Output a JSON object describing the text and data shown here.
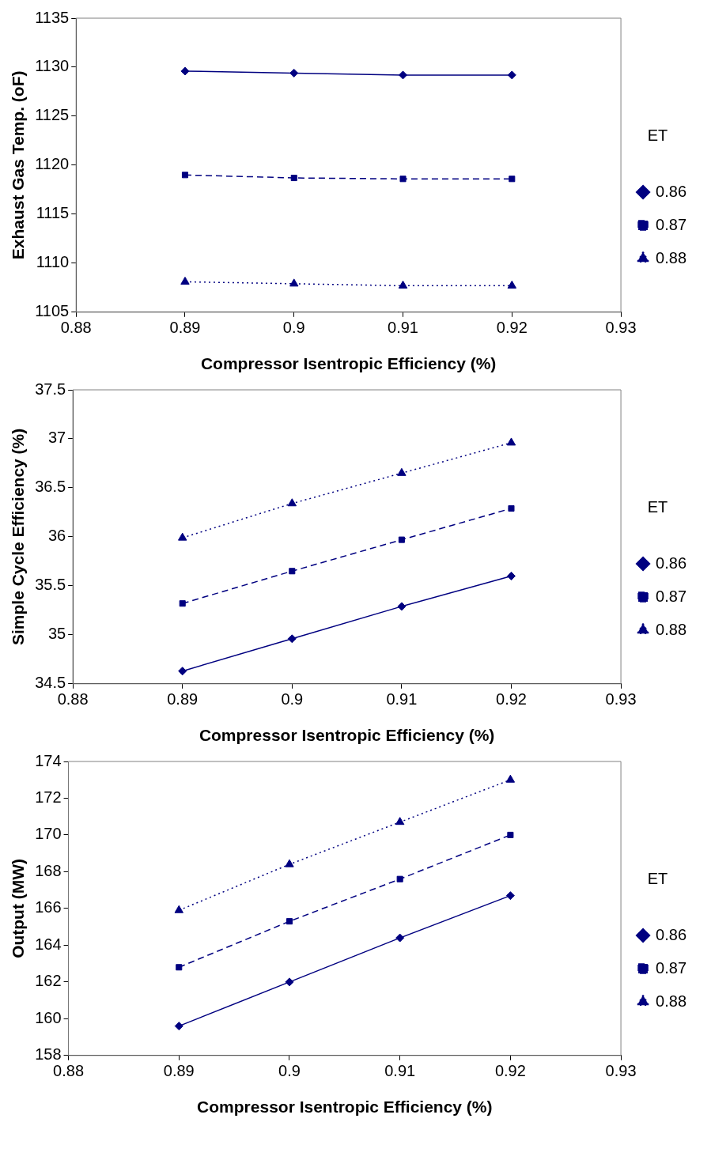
{
  "chart_data": [
    {
      "type": "line",
      "xlabel": "Compressor Isentropic Efficiency (%)",
      "ylabel": "Exhaust Gas Temp. (oF)",
      "legend_title": "ET",
      "legend": "right",
      "grid": false,
      "xlim": [
        0.88,
        0.93
      ],
      "xticks": [
        0.88,
        0.89,
        0.9,
        0.91,
        0.92,
        0.93
      ],
      "ylim": [
        1105,
        1135
      ],
      "yticks": [
        1105,
        1110,
        1115,
        1120,
        1125,
        1130,
        1135
      ],
      "x": [
        0.89,
        0.9,
        0.91,
        0.92
      ],
      "series": [
        {
          "name": "0.86",
          "color": "#000080",
          "marker": "diamond",
          "line_style": "solid",
          "values": [
            1129.6,
            1129.4,
            1129.2,
            1129.2
          ]
        },
        {
          "name": "0.87",
          "color": "#000080",
          "marker": "square",
          "line_style": "dashed",
          "values": [
            1119.0,
            1118.7,
            1118.6,
            1118.6
          ]
        },
        {
          "name": "0.88",
          "color": "#000080",
          "marker": "triangle",
          "line_style": "dotted",
          "values": [
            1108.1,
            1107.9,
            1107.7,
            1107.7
          ]
        }
      ]
    },
    {
      "type": "line",
      "xlabel": "Compressor Isentropic Efficiency (%)",
      "ylabel": "Simple Cycle Efficiency (%)",
      "legend_title": "ET",
      "legend": "right",
      "grid": false,
      "xlim": [
        0.88,
        0.93
      ],
      "xticks": [
        0.88,
        0.89,
        0.9,
        0.91,
        0.92,
        0.93
      ],
      "ylim": [
        34.5,
        37.5
      ],
      "yticks": [
        34.5,
        35,
        35.5,
        36,
        36.5,
        37,
        37.5
      ],
      "x": [
        0.89,
        0.9,
        0.91,
        0.92
      ],
      "series": [
        {
          "name": "0.86",
          "color": "#000080",
          "marker": "diamond",
          "line_style": "solid",
          "values": [
            34.63,
            34.96,
            35.29,
            35.6
          ]
        },
        {
          "name": "0.87",
          "color": "#000080",
          "marker": "square",
          "line_style": "dashed",
          "values": [
            35.32,
            35.65,
            35.97,
            36.29
          ]
        },
        {
          "name": "0.88",
          "color": "#000080",
          "marker": "triangle",
          "line_style": "dotted",
          "values": [
            35.99,
            36.34,
            36.65,
            36.96
          ]
        }
      ]
    },
    {
      "type": "line",
      "xlabel": "Compressor Isentropic Efficiency (%)",
      "ylabel": "Output (MW)",
      "legend_title": "ET",
      "legend": "right",
      "grid": false,
      "xlim": [
        0.88,
        0.93
      ],
      "xticks": [
        0.88,
        0.89,
        0.9,
        0.91,
        0.92,
        0.93
      ],
      "ylim": [
        158,
        174
      ],
      "yticks": [
        158,
        160,
        162,
        164,
        166,
        168,
        170,
        172,
        174
      ],
      "x": [
        0.89,
        0.9,
        0.91,
        0.92
      ],
      "series": [
        {
          "name": "0.86",
          "color": "#000080",
          "marker": "diamond",
          "line_style": "solid",
          "values": [
            159.6,
            162.0,
            164.4,
            166.7
          ]
        },
        {
          "name": "0.87",
          "color": "#000080",
          "marker": "square",
          "line_style": "dashed",
          "values": [
            162.8,
            165.3,
            167.6,
            170.0
          ]
        },
        {
          "name": "0.88",
          "color": "#000080",
          "marker": "triangle",
          "line_style": "dotted",
          "values": [
            165.9,
            168.4,
            170.7,
            173.0
          ]
        }
      ]
    }
  ]
}
